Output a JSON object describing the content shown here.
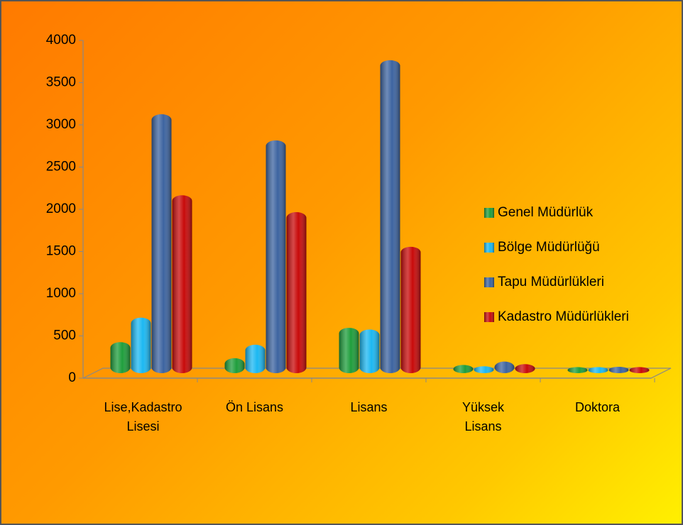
{
  "chart_data": {
    "type": "bar3d",
    "categories": [
      "Lise,Kadastro Lisesi",
      "Ön Lisans",
      "Lisans",
      "Yüksek Lisans",
      "Doktora"
    ],
    "series": [
      {
        "name": "Genel Müdürlük",
        "color": "#1f9e3c",
        "values": [
          300,
          110,
          470,
          30,
          5
        ]
      },
      {
        "name": "Bölge Müdürlüğü",
        "color": "#1cb8f2",
        "values": [
          590,
          270,
          450,
          15,
          5
        ]
      },
      {
        "name": "Tapu Müdürlükleri",
        "color": "#3d64a0",
        "values": [
          3000,
          2690,
          3640,
          70,
          8
        ]
      },
      {
        "name": "Kadastro Müdürlükleri",
        "color": "#c80a0a",
        "values": [
          2040,
          1840,
          1430,
          40,
          5
        ]
      }
    ],
    "ylim": [
      0,
      4000
    ],
    "yticks": [
      0,
      500,
      1000,
      1500,
      2000,
      2500,
      3000,
      3500,
      4000
    ],
    "legend": "right"
  }
}
